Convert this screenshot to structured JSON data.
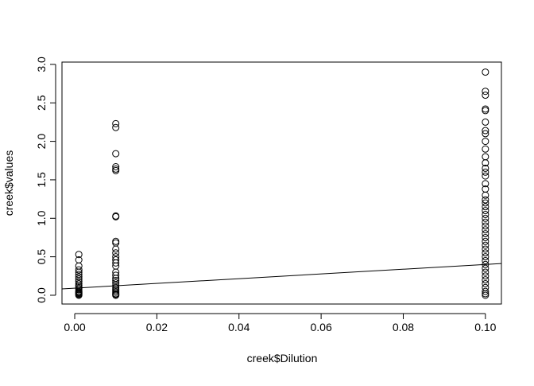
{
  "chart_data": {
    "type": "scatter",
    "x_label": "creek$Dilution",
    "y_label": "creek$values",
    "xlim": [
      -0.0031,
      0.1039
    ],
    "ylim": [
      -0.114,
      3.03
    ],
    "xticks": [
      {
        "value": 0,
        "label": "0.00"
      },
      {
        "value": 0.02,
        "label": "0.02"
      },
      {
        "value": 0.04,
        "label": "0.04"
      },
      {
        "value": 0.06,
        "label": "0.06"
      },
      {
        "value": 0.08,
        "label": "0.08"
      },
      {
        "value": 0.1,
        "label": "0.10"
      }
    ],
    "yticks": [
      {
        "value": 0,
        "label": "0.0"
      },
      0.5,
      {
        "value": 1,
        "label": "1.0"
      },
      1.5,
      {
        "value": 2,
        "label": "2.0"
      },
      2.5,
      {
        "value": 3,
        "label": "3.0"
      }
    ],
    "color": "#000000",
    "series": [
      {
        "x": 0.001,
        "values": [
          0.53,
          0.46,
          0.38,
          0.33,
          0.3,
          0.27,
          0.24,
          0.21,
          0.18,
          0.15,
          0.13,
          0.11,
          0.09,
          0.07,
          0.05,
          0.04,
          0.03,
          0.02,
          0.01,
          0
        ]
      },
      {
        "x": 0.01,
        "values": [
          2.23,
          2.18,
          1.84,
          1.67,
          1.64,
          1.62,
          1.03,
          1.02,
          0.7,
          0.68,
          0.6,
          0.55,
          0.5,
          0.46,
          0.42,
          0.38,
          0.3,
          0.26,
          0.22,
          0.19,
          0.16,
          0.13,
          0.1,
          0.08,
          0.06,
          0.04,
          0.02,
          0.01,
          0
        ]
      },
      {
        "x": 0.1,
        "values": [
          2.9,
          2.65,
          2.6,
          2.42,
          2.4,
          2.25,
          2.14,
          2.1,
          2,
          1.9,
          1.8,
          1.72,
          1.65,
          1.6,
          1.55,
          1.45,
          1.38,
          1.3,
          1.24,
          1.2,
          1.15,
          1.1,
          1.05,
          1,
          0.95,
          0.9,
          0.85,
          0.8,
          0.75,
          0.7,
          0.65,
          0.6,
          0.55,
          0.5,
          0.45,
          0.4,
          0.35,
          0.3,
          0.25,
          0.2,
          0.15,
          0.1,
          0.05,
          0.02,
          0
        ]
      }
    ],
    "abline": {
      "intercept": 0.092,
      "slope": 3.08
    }
  }
}
